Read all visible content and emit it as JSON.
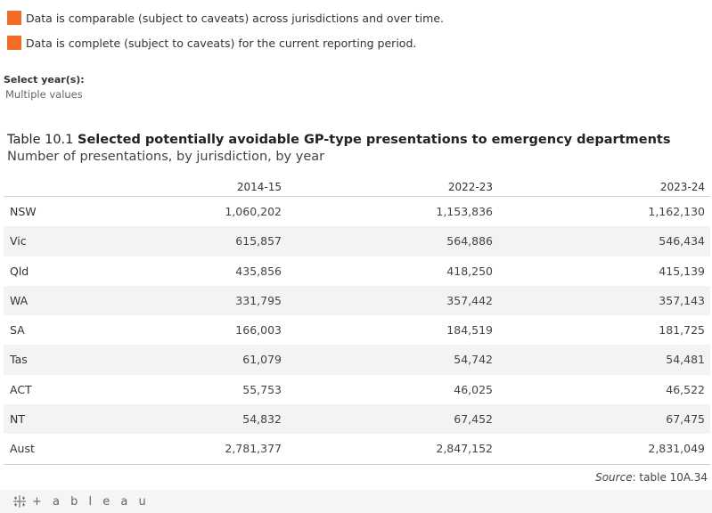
{
  "legend": [
    {
      "text": "Data is comparable (subject to caveats) across jurisdictions and over time.",
      "color": "#f26a25"
    },
    {
      "text": "Data is complete (subject to caveats) for the current reporting period.",
      "color": "#f26a25"
    }
  ],
  "filter": {
    "label": "Select year(s):",
    "value": "Multiple values"
  },
  "title": {
    "prefix": "Table 10.1 ",
    "main": "Selected potentially avoidable GP-type presentations to emergency departments",
    "subtitle": "Number of presentations, by jurisdiction, by year"
  },
  "table": {
    "columns": [
      "2014-15",
      "2022-23",
      "2023-24"
    ],
    "rows": [
      {
        "label": "NSW",
        "values": [
          "1,060,202",
          "1,153,836",
          "1,162,130"
        ]
      },
      {
        "label": "Vic",
        "values": [
          "615,857",
          "564,886",
          "546,434"
        ]
      },
      {
        "label": "Qld",
        "values": [
          "435,856",
          "418,250",
          "415,139"
        ]
      },
      {
        "label": "WA",
        "values": [
          "331,795",
          "357,442",
          "357,143"
        ]
      },
      {
        "label": "SA",
        "values": [
          "166,003",
          "184,519",
          "181,725"
        ]
      },
      {
        "label": "Tas",
        "values": [
          "61,079",
          "54,742",
          "54,481"
        ]
      },
      {
        "label": "ACT",
        "values": [
          "55,753",
          "46,025",
          "46,522"
        ]
      },
      {
        "label": "NT",
        "values": [
          "54,832",
          "67,452",
          "67,475"
        ]
      },
      {
        "label": "Aust",
        "values": [
          "2,781,377",
          "2,847,152",
          "2,831,049"
        ]
      }
    ]
  },
  "source": {
    "label": "Source",
    "text": ": table 10A.34"
  },
  "footer": {
    "logo_text": "+ a b l e a u",
    "logo_icon": "tableau-logo-icon"
  }
}
